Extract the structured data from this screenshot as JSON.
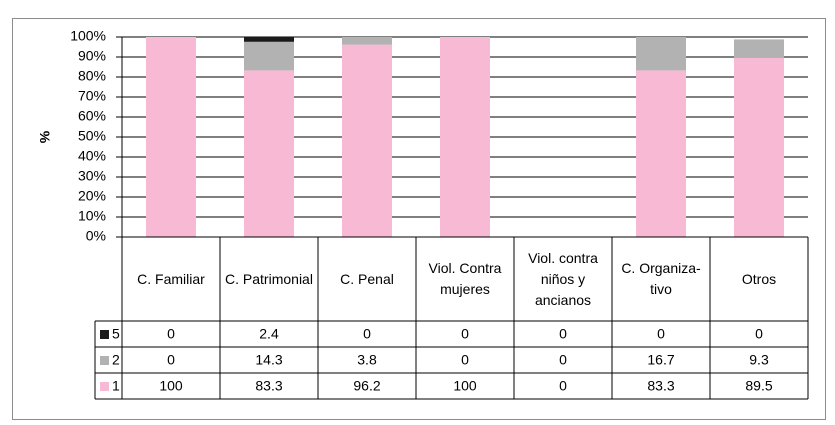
{
  "chart_data": {
    "type": "stacked_bar",
    "y_label": "%",
    "categories": [
      "C. Familiar",
      "C. Patrimonial",
      "C. Penal",
      "Viol. Contra mujeres",
      "Viol. contra niños y ancianos",
      "C. Organiza-tivo",
      "Otros"
    ],
    "series": [
      {
        "name": "1",
        "color": "#f7b9d3",
        "values": [
          100,
          83.3,
          96.2,
          100,
          0,
          83.3,
          89.5
        ]
      },
      {
        "name": "2",
        "color": "#b2b2b2",
        "values": [
          0,
          14.3,
          3.8,
          0,
          0,
          16.7,
          9.3
        ]
      },
      {
        "name": "5",
        "color": "#1a1a1a",
        "values": [
          0,
          2.4,
          0,
          0,
          0,
          0,
          0
        ]
      }
    ],
    "ylim": [
      0,
      100
    ],
    "yticks": [
      {
        "value": 0,
        "label": "0%"
      },
      {
        "value": 10,
        "label": "10%"
      },
      {
        "value": 20,
        "label": "20%"
      },
      {
        "value": 30,
        "label": "30%"
      },
      {
        "value": 40,
        "label": "40%"
      },
      {
        "value": 50,
        "label": "50%"
      },
      {
        "value": 60,
        "label": "60%"
      },
      {
        "value": 70,
        "label": "70%"
      },
      {
        "value": 80,
        "label": "80%"
      },
      {
        "value": 90,
        "label": "90%"
      },
      {
        "value": 100,
        "label": "100%"
      }
    ],
    "grid": true,
    "data_table": true
  }
}
